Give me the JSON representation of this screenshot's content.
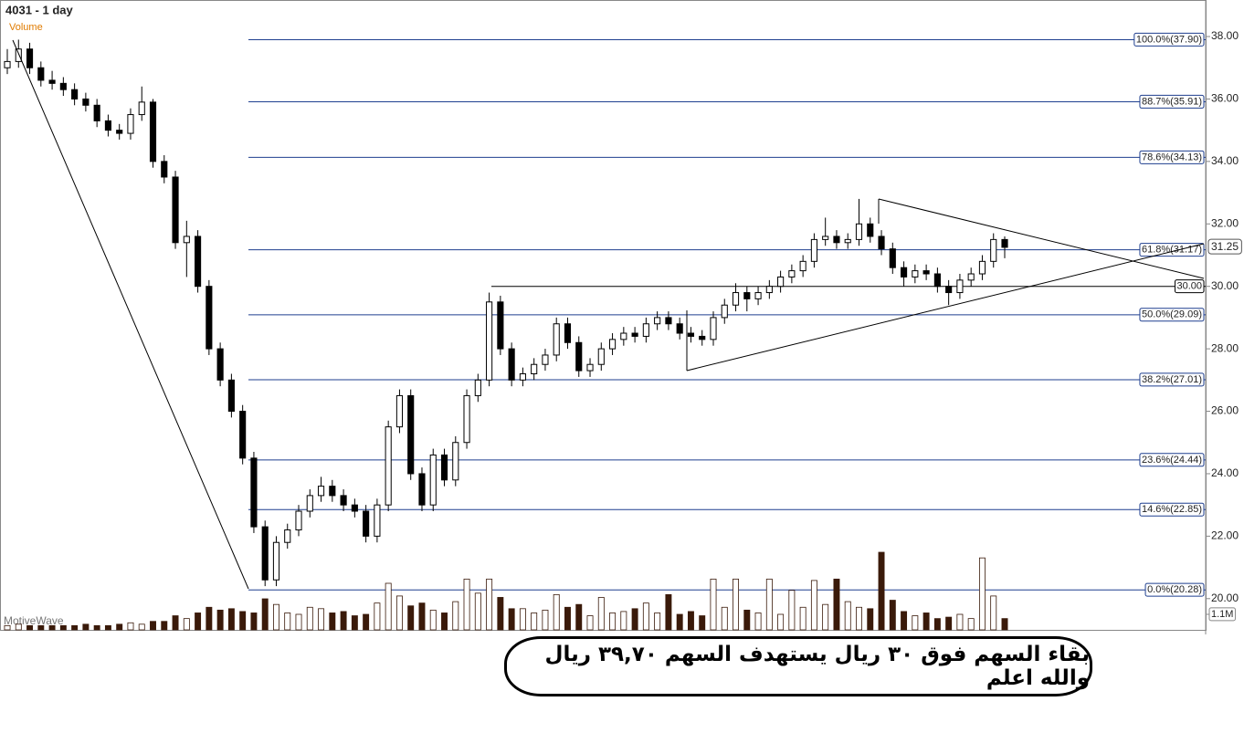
{
  "chart_data": {
    "type": "candlestick",
    "title": "4031 - 1 day",
    "volume_label": "Volume",
    "watermark": "MotiveWave",
    "note": "بقاء السهم فوق ٣٠ ريال يستهدف السهم ٣٩,٧٠ ريال والله اعلم",
    "ylim": [
      19,
      39.17
    ],
    "yticks": [
      {
        "value": 20,
        "label": "20.00"
      },
      {
        "value": 22,
        "label": "22.00"
      },
      {
        "value": 24,
        "label": "24.00"
      },
      {
        "value": 26,
        "label": "26.00"
      },
      {
        "value": 28,
        "label": "28.00"
      },
      {
        "value": 30,
        "label": "30.00"
      },
      {
        "value": 32,
        "label": "32.00"
      },
      {
        "value": 34,
        "label": "34.00"
      },
      {
        "value": 36,
        "label": "36.00"
      },
      {
        "value": 38,
        "label": "38.00"
      }
    ],
    "fib_levels": [
      {
        "value": 37.9,
        "label": "100.0%(37.90)"
      },
      {
        "value": 35.91,
        "label": "88.7%(35.91)"
      },
      {
        "value": 34.13,
        "label": "78.6%(34.13)"
      },
      {
        "value": 31.17,
        "label": "61.8%(31.17)"
      },
      {
        "value": 29.09,
        "label": "50.0%(29.09)"
      },
      {
        "value": 27.01,
        "label": "38.2%(27.01)"
      },
      {
        "value": 24.44,
        "label": "23.6%(24.44)"
      },
      {
        "value": 22.85,
        "label": "14.6%(22.85)"
      },
      {
        "value": 20.28,
        "label": "0.0%(20.28)"
      }
    ],
    "support_level": {
      "value": 30,
      "label": "30.00"
    },
    "last_price": 31.25,
    "volume_ylim": [
      0,
      5.5
    ],
    "volume_tick": {
      "value": 1.1,
      "label": "1.1M"
    },
    "candles": [
      [
        37.0,
        37.6,
        36.8,
        37.2
      ],
      [
        37.2,
        37.9,
        37.0,
        37.6
      ],
      [
        37.6,
        37.8,
        36.8,
        37.0
      ],
      [
        37.0,
        37.2,
        36.4,
        36.6
      ],
      [
        36.6,
        36.9,
        36.3,
        36.5
      ],
      [
        36.5,
        36.7,
        36.1,
        36.3
      ],
      [
        36.3,
        36.5,
        35.8,
        36.0
      ],
      [
        36.0,
        36.2,
        35.6,
        35.8
      ],
      [
        35.8,
        36.0,
        35.1,
        35.3
      ],
      [
        35.3,
        35.5,
        34.8,
        35.0
      ],
      [
        35.0,
        35.2,
        34.7,
        34.9
      ],
      [
        34.9,
        35.7,
        34.7,
        35.5
      ],
      [
        35.5,
        36.4,
        35.3,
        35.9
      ],
      [
        35.9,
        36.0,
        33.8,
        34.0
      ],
      [
        34.0,
        34.2,
        33.3,
        33.5
      ],
      [
        33.5,
        33.7,
        31.2,
        31.4
      ],
      [
        31.4,
        32.1,
        30.3,
        31.6
      ],
      [
        31.6,
        31.8,
        29.8,
        30.0
      ],
      [
        30.0,
        30.2,
        27.8,
        28.0
      ],
      [
        28.0,
        28.2,
        26.8,
        27.0
      ],
      [
        27.0,
        27.2,
        25.8,
        26.0
      ],
      [
        26.0,
        26.2,
        24.3,
        24.5
      ],
      [
        24.5,
        24.7,
        22.1,
        22.3
      ],
      [
        22.3,
        22.5,
        20.4,
        20.6
      ],
      [
        20.6,
        22.0,
        20.4,
        21.8
      ],
      [
        21.8,
        22.4,
        21.6,
        22.2
      ],
      [
        22.2,
        23.0,
        22.0,
        22.8
      ],
      [
        22.8,
        23.5,
        22.6,
        23.3
      ],
      [
        23.3,
        23.9,
        23.1,
        23.6
      ],
      [
        23.6,
        23.8,
        23.1,
        23.3
      ],
      [
        23.3,
        23.5,
        22.8,
        23.0
      ],
      [
        23.0,
        23.2,
        22.6,
        22.8
      ],
      [
        22.8,
        23.0,
        21.8,
        22.0
      ],
      [
        22.0,
        23.2,
        21.8,
        23.0
      ],
      [
        23.0,
        25.7,
        22.8,
        25.5
      ],
      [
        25.5,
        26.7,
        25.3,
        26.5
      ],
      [
        26.5,
        26.7,
        23.8,
        24.0
      ],
      [
        24.0,
        24.2,
        22.8,
        23.0
      ],
      [
        23.0,
        24.8,
        22.8,
        24.6
      ],
      [
        24.6,
        24.8,
        23.6,
        23.8
      ],
      [
        23.8,
        25.2,
        23.6,
        25.0
      ],
      [
        25.0,
        26.7,
        24.8,
        26.5
      ],
      [
        26.5,
        27.2,
        26.3,
        27.0
      ],
      [
        27.0,
        29.8,
        26.8,
        29.5
      ],
      [
        29.5,
        29.7,
        27.8,
        28.0
      ],
      [
        28.0,
        28.2,
        26.8,
        27.0
      ],
      [
        27.0,
        27.4,
        26.8,
        27.2
      ],
      [
        27.2,
        27.7,
        27.0,
        27.5
      ],
      [
        27.5,
        28.0,
        27.3,
        27.8
      ],
      [
        27.8,
        29.0,
        27.6,
        28.8
      ],
      [
        28.8,
        29.0,
        28.0,
        28.2
      ],
      [
        28.2,
        28.4,
        27.1,
        27.3
      ],
      [
        27.3,
        27.7,
        27.1,
        27.5
      ],
      [
        27.5,
        28.2,
        27.3,
        28.0
      ],
      [
        28.0,
        28.5,
        27.8,
        28.3
      ],
      [
        28.3,
        28.7,
        28.1,
        28.5
      ],
      [
        28.5,
        28.7,
        28.2,
        28.4
      ],
      [
        28.4,
        29.0,
        28.2,
        28.8
      ],
      [
        28.8,
        29.2,
        28.6,
        29.0
      ],
      [
        29.0,
        29.2,
        28.6,
        28.8
      ],
      [
        28.8,
        29.0,
        28.3,
        28.5
      ],
      [
        28.5,
        28.7,
        28.2,
        28.4
      ],
      [
        28.4,
        28.6,
        28.1,
        28.3
      ],
      [
        28.3,
        29.2,
        28.1,
        29.0
      ],
      [
        29.0,
        29.6,
        28.8,
        29.4
      ],
      [
        29.4,
        30.1,
        29.2,
        29.8
      ],
      [
        29.8,
        30.0,
        29.2,
        29.6
      ],
      [
        29.6,
        30.0,
        29.4,
        29.8
      ],
      [
        29.8,
        30.2,
        29.6,
        30.0
      ],
      [
        30.0,
        30.5,
        29.8,
        30.3
      ],
      [
        30.3,
        30.7,
        30.1,
        30.5
      ],
      [
        30.5,
        31.0,
        30.3,
        30.8
      ],
      [
        30.8,
        31.7,
        30.6,
        31.5
      ],
      [
        31.5,
        32.2,
        31.3,
        31.6
      ],
      [
        31.6,
        31.8,
        31.2,
        31.4
      ],
      [
        31.4,
        31.7,
        31.2,
        31.5
      ],
      [
        31.5,
        32.8,
        31.3,
        32.0
      ],
      [
        32.0,
        32.2,
        31.4,
        31.6
      ],
      [
        31.6,
        31.8,
        31.0,
        31.2
      ],
      [
        31.2,
        31.4,
        30.4,
        30.6
      ],
      [
        30.6,
        30.8,
        30.0,
        30.3
      ],
      [
        30.3,
        30.7,
        30.1,
        30.5
      ],
      [
        30.5,
        30.7,
        30.2,
        30.4
      ],
      [
        30.4,
        30.6,
        29.8,
        30.0
      ],
      [
        30.0,
        30.2,
        29.4,
        29.8
      ],
      [
        29.8,
        30.4,
        29.6,
        30.2
      ],
      [
        30.2,
        30.6,
        30.0,
        30.4
      ],
      [
        30.4,
        31.0,
        30.2,
        30.8
      ],
      [
        30.8,
        31.7,
        30.6,
        31.5
      ],
      [
        31.5,
        31.6,
        30.9,
        31.25
      ]
    ],
    "volumes": [
      0.3,
      0.4,
      0.3,
      0.3,
      0.3,
      0.3,
      0.3,
      0.4,
      0.3,
      0.3,
      0.4,
      0.5,
      0.4,
      0.6,
      0.6,
      1.0,
      0.8,
      1.2,
      1.6,
      1.4,
      1.5,
      1.3,
      1.2,
      2.2,
      1.8,
      1.2,
      1.1,
      1.6,
      1.5,
      1.2,
      1.3,
      1.0,
      1.1,
      1.9,
      3.3,
      2.4,
      1.7,
      1.9,
      1.4,
      1.2,
      2.0,
      3.6,
      2.6,
      3.6,
      2.3,
      1.5,
      1.5,
      1.2,
      1.4,
      2.5,
      1.6,
      1.8,
      1.0,
      2.3,
      1.2,
      1.3,
      1.5,
      1.9,
      1.2,
      2.5,
      1.1,
      1.3,
      1.0,
      3.6,
      1.6,
      3.6,
      1.4,
      1.2,
      3.6,
      1.1,
      2.8,
      1.6,
      3.5,
      1.8,
      3.6,
      2.0,
      1.6,
      1.5,
      5.5,
      2.1,
      1.3,
      1.0,
      1.2,
      0.8,
      0.9,
      1.1,
      0.8,
      5.1,
      2.4,
      0.8
    ]
  }
}
